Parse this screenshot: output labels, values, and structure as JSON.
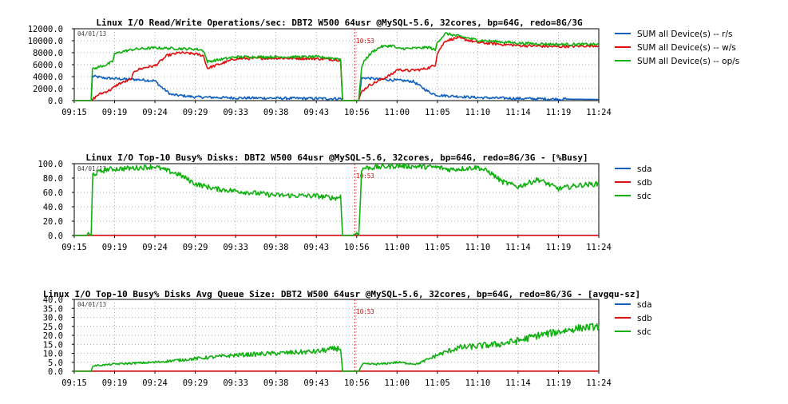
{
  "colors": {
    "blue": "#1060c0",
    "red": "#e01010",
    "green": "#10b010",
    "grid": "#888888",
    "marker": "#cc0000"
  },
  "chart_data": [
    {
      "type": "line",
      "title": "Linux I/O Read/Write Operations/sec: DBT2 W500 64usr @MySQL-5.6, 32cores, bp=64G, redo=8G/3G",
      "date_label": "04/01/13",
      "marker_label": "10:53",
      "marker_index": 7,
      "x_ticks": [
        "09:15",
        "09:19",
        "09:24",
        "09:29",
        "09:33",
        "09:38",
        "09:43",
        "10:56",
        "11:00",
        "11:05",
        "11:10",
        "11:14",
        "11:19",
        "11:24"
      ],
      "y_ticks": [
        "12000.0",
        "10000.0",
        "8000.0",
        "6000.0",
        "4000.0",
        "2000.0",
        "0.0"
      ],
      "ylim": [
        0,
        12000
      ],
      "legend": [
        "SUM all Device(s) -- r/s",
        "SUM all Device(s) -- w/s",
        "SUM all Device(s) -- op/s"
      ],
      "series": [
        {
          "name": "SUM all Device(s) -- r/s",
          "color": "blue",
          "x": [
            0,
            0.3,
            0.42,
            0.45,
            0.7,
            1.2,
            1.6,
            2,
            2.15,
            2.4,
            3,
            4,
            5,
            6,
            6.6,
            6.65,
            6.75,
            6.9,
            7,
            7.05,
            7.12,
            7.2,
            7.5,
            8,
            8.4,
            8.6,
            8.8,
            9,
            9.5,
            10,
            11,
            12,
            13
          ],
          "values": [
            0,
            0,
            0,
            4100,
            3800,
            3600,
            3500,
            3300,
            2300,
            1000,
            600,
            450,
            400,
            350,
            330,
            0,
            0,
            0,
            0,
            0,
            3700,
            3800,
            3600,
            3400,
            3200,
            2300,
            1400,
            900,
            700,
            500,
            350,
            250,
            200
          ]
        },
        {
          "name": "SUM all Device(s) -- w/s",
          "color": "red",
          "x": [
            0,
            0.3,
            0.42,
            0.6,
            0.9,
            1.1,
            1.4,
            1.5,
            1.8,
            2,
            2.3,
            2.6,
            3,
            3.2,
            3.3,
            4,
            5,
            6,
            6.6,
            6.65,
            6.75,
            6.9,
            7,
            7.05,
            7.12,
            7.3,
            7.6,
            7.9,
            8,
            8.3,
            8.6,
            8.8,
            8.95,
            9,
            9.2,
            9.5,
            10,
            11,
            12,
            13
          ],
          "values": [
            0,
            0,
            0,
            1000,
            1800,
            2800,
            3500,
            5000,
            5600,
            5800,
            7500,
            8000,
            7800,
            7500,
            5400,
            7000,
            7100,
            7000,
            6800,
            0,
            0,
            0,
            0,
            0,
            1500,
            2500,
            3500,
            4500,
            5200,
            5000,
            5200,
            5500,
            6000,
            8000,
            10000,
            10500,
            9700,
            9200,
            9000,
            9200
          ]
        },
        {
          "name": "SUM all Device(s) -- op/s",
          "color": "green",
          "x": [
            0,
            0.3,
            0.42,
            0.45,
            0.6,
            0.8,
            0.95,
            1,
            1.2,
            1.5,
            2,
            2.5,
            3,
            3.2,
            3.3,
            4,
            5,
            6,
            6.6,
            6.65,
            6.75,
            6.9,
            7,
            7.05,
            7.12,
            7.2,
            7.4,
            7.6,
            7.9,
            8,
            8.3,
            8.6,
            8.8,
            8.95,
            9,
            9.2,
            9.5,
            10,
            11,
            12,
            13
          ],
          "values": [
            0,
            0,
            0,
            5200,
            5600,
            6000,
            6500,
            7800,
            8200,
            8600,
            8800,
            8700,
            8600,
            8400,
            6500,
            7300,
            7300,
            7300,
            7000,
            0,
            0,
            0,
            0,
            0,
            5500,
            6800,
            8200,
            9000,
            9200,
            8700,
            8700,
            8800,
            8900,
            8400,
            9800,
            11200,
            10800,
            10100,
            9600,
            9400,
            9400
          ]
        }
      ]
    },
    {
      "type": "line",
      "title": "Linux I/O Top-10 Busy% Disks: DBT2 W500 64usr @MySQL-5.6, 32cores, bp=64G, redo=8G/3G - [%Busy]",
      "date_label": "04/01/13",
      "marker_label": "10:53",
      "marker_index": 7,
      "x_ticks": [
        "09:15",
        "09:19",
        "09:24",
        "09:29",
        "09:33",
        "09:38",
        "09:43",
        "10:56",
        "11:00",
        "11:05",
        "11:10",
        "11:14",
        "11:19",
        "11:24"
      ],
      "y_ticks": [
        "100.0",
        "80.0",
        "60.0",
        "40.0",
        "20.0",
        "0.0"
      ],
      "ylim": [
        0,
        100
      ],
      "legend": [
        "sda",
        "sdb",
        "sdc"
      ],
      "series": [
        {
          "name": "sda",
          "color": "blue",
          "x": [
            0,
            13
          ],
          "values": [
            0.3,
            0.3
          ]
        },
        {
          "name": "sdb",
          "color": "red",
          "x": [
            0,
            13
          ],
          "values": [
            0.2,
            0.2
          ]
        },
        {
          "name": "sdc",
          "color": "green",
          "x": [
            0,
            0.3,
            0.35,
            0.42,
            0.46,
            0.8,
            1.5,
            2,
            2.2,
            2.6,
            3,
            3.5,
            4,
            5,
            6,
            6.5,
            6.6,
            6.65,
            6.75,
            6.9,
            7,
            7.05,
            7.12,
            7.16,
            7.5,
            8,
            8.5,
            9,
            9.3,
            9.6,
            10,
            10.3,
            10.6,
            11,
            11.5,
            12,
            12.5,
            13
          ],
          "values": [
            0,
            0,
            3,
            0,
            85,
            92,
            94,
            96,
            92,
            85,
            72,
            65,
            62,
            56,
            55,
            52,
            55,
            0,
            0,
            0,
            4,
            0,
            88,
            94,
            95,
            97,
            96,
            95,
            92,
            93,
            95,
            88,
            75,
            68,
            78,
            65,
            70,
            72
          ]
        }
      ]
    },
    {
      "type": "line",
      "title": "Linux I/O Top-10 Busy% Disks Avg Queue Size: DBT2 W500 64usr @MySQL-5.6, 32cores, bp=64G, redo=8G/3G - [avgqu-sz]",
      "date_label": "04/01/13",
      "marker_label": "10:53",
      "marker_index": 7,
      "x_ticks": [
        "09:15",
        "09:19",
        "09:24",
        "09:29",
        "09:33",
        "09:38",
        "09:43",
        "10:56",
        "11:00",
        "11:05",
        "11:10",
        "11:14",
        "11:19",
        "11:24"
      ],
      "y_ticks": [
        "40.0",
        "35.0",
        "30.0",
        "25.0",
        "20.0",
        "15.0",
        "10.0",
        "5.0",
        "0.0"
      ],
      "ylim": [
        0,
        40
      ],
      "legend": [
        "sda",
        "sdb",
        "sdc"
      ],
      "series": [
        {
          "name": "sda",
          "color": "blue",
          "x": [
            0,
            13
          ],
          "values": [
            0.1,
            0.1
          ]
        },
        {
          "name": "sdb",
          "color": "red",
          "x": [
            0,
            13
          ],
          "values": [
            0.1,
            0.1
          ]
        },
        {
          "name": "sdc",
          "color": "green",
          "x": [
            0,
            0.3,
            0.42,
            0.46,
            1,
            2,
            3,
            4,
            5,
            6,
            6.6,
            6.65,
            6.75,
            6.9,
            7,
            7.05,
            7.12,
            7.16,
            7.6,
            8,
            8.5,
            9,
            9.5,
            10,
            10.5,
            11,
            11.5,
            12,
            12.5,
            13
          ],
          "values": [
            0,
            0,
            0,
            3,
            4,
            5,
            7,
            9,
            10,
            11,
            13,
            0,
            0,
            0,
            0,
            0,
            3,
            4,
            4,
            5,
            4,
            9,
            13,
            14,
            15,
            17,
            20,
            22,
            24,
            25
          ]
        }
      ]
    }
  ]
}
